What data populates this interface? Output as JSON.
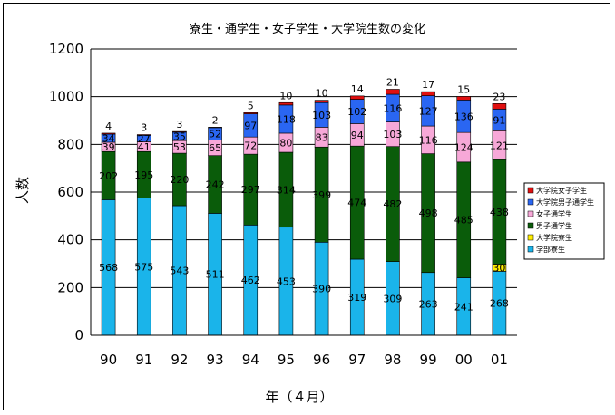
{
  "chart_data": {
    "type": "bar",
    "stacked": true,
    "title": "寮生・通学生・女子学生・大学院生数の変化",
    "xlabel": "年（４月）",
    "ylabel": "人数",
    "ylim": [
      0,
      1200
    ],
    "yticks": [
      0,
      200,
      400,
      600,
      800,
      1000,
      1200
    ],
    "grid": true,
    "legend_position": "right",
    "categories": [
      "90",
      "91",
      "92",
      "93",
      "94",
      "95",
      "96",
      "97",
      "98",
      "99",
      "00",
      "01"
    ],
    "series": [
      {
        "name": "学部寮生",
        "color": "#1ab4ea",
        "values": [
          568,
          575,
          543,
          511,
          462,
          453,
          390,
          319,
          309,
          263,
          241,
          268
        ]
      },
      {
        "name": "大学院寮生",
        "color": "#ffee00",
        "values": [
          0,
          0,
          0,
          0,
          0,
          0,
          0,
          0,
          0,
          0,
          0,
          30
        ]
      },
      {
        "name": "男子通学生",
        "color": "#0a5c0a",
        "values": [
          202,
          195,
          220,
          242,
          297,
          314,
          399,
          474,
          482,
          498,
          485,
          438
        ]
      },
      {
        "name": "女子通学生",
        "color": "#f7a8d8",
        "values": [
          39,
          41,
          53,
          65,
          72,
          80,
          83,
          94,
          103,
          116,
          124,
          121
        ]
      },
      {
        "name": "大学院男子通学生",
        "color": "#2a66f2",
        "values": [
          34,
          27,
          35,
          52,
          97,
          118,
          103,
          102,
          116,
          127,
          136,
          91
        ]
      },
      {
        "name": "大学院女子学生",
        "color": "#e01010",
        "values": [
          4,
          3,
          3,
          2,
          5,
          10,
          10,
          14,
          21,
          17,
          15,
          23
        ]
      }
    ],
    "legend_order": [
      5,
      4,
      3,
      2,
      1,
      0
    ]
  }
}
